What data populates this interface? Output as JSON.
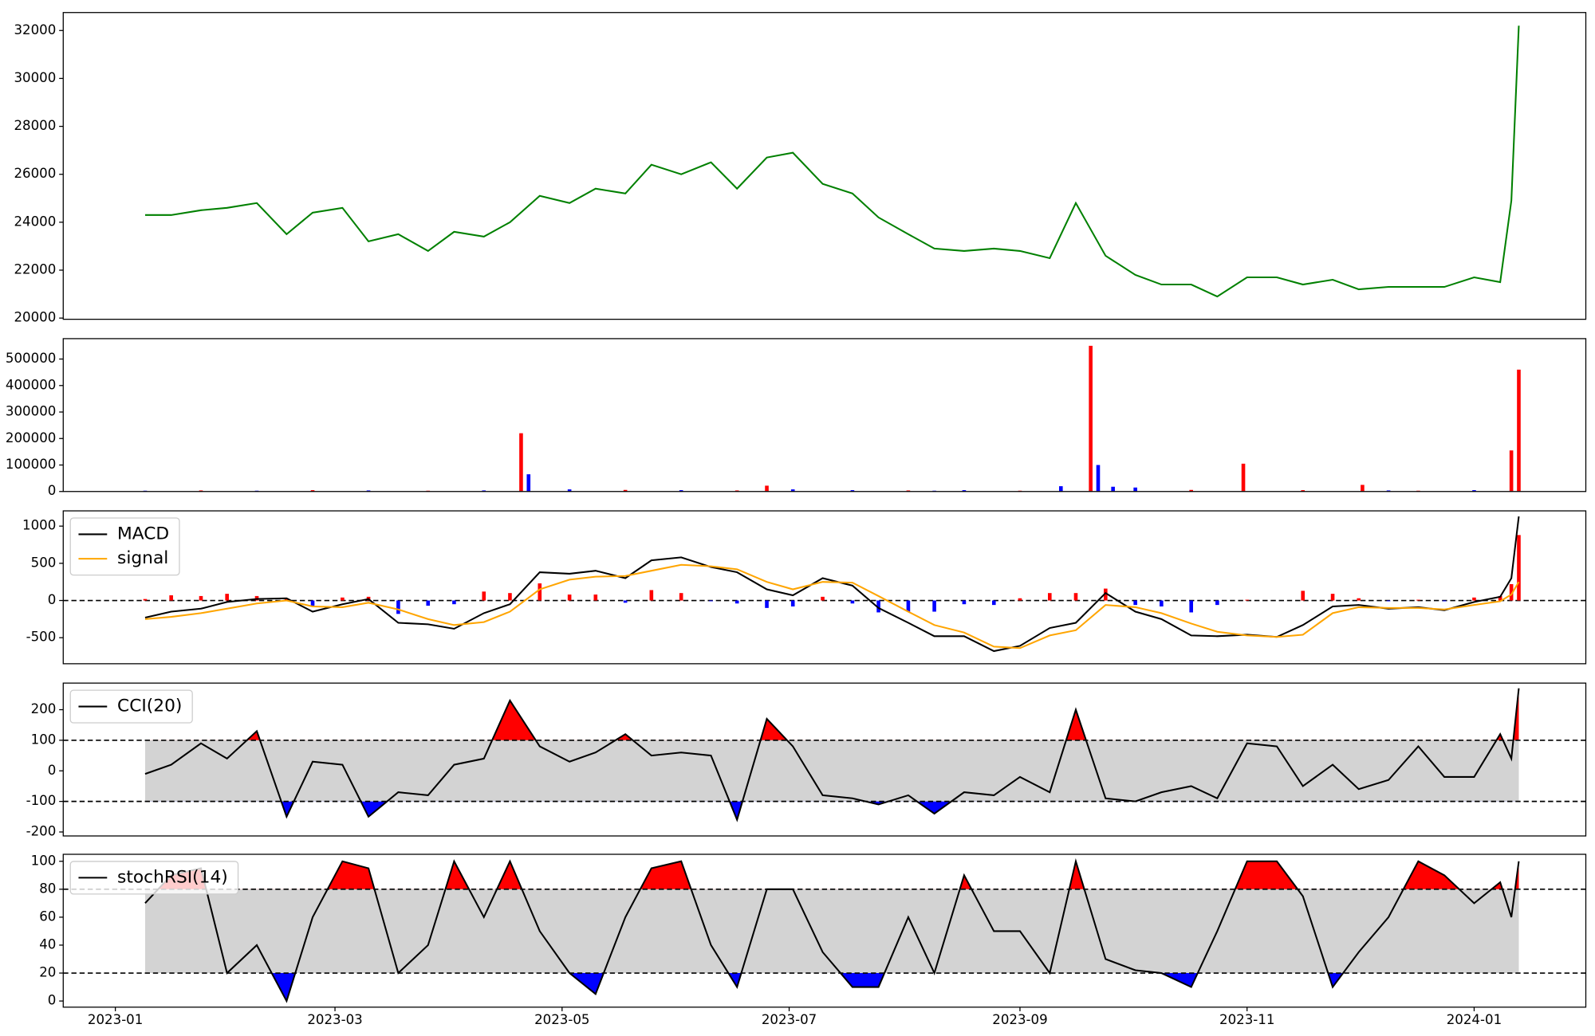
{
  "chart_data": [
    {
      "type": "line",
      "x": [
        8,
        15,
        23,
        30,
        38,
        46,
        53,
        61,
        68,
        76,
        84,
        91,
        99,
        106,
        114,
        122,
        129,
        137,
        144,
        152,
        160,
        167,
        175,
        182,
        190,
        198,
        205,
        213,
        220,
        228,
        236,
        243,
        251,
        258,
        266,
        274,
        281,
        289,
        296,
        304,
        312,
        319,
        327,
        334,
        342,
        350,
        357,
        365,
        372,
        375,
        377
      ],
      "series": [
        {
          "color": "green",
          "values": [
            24300,
            24300,
            24500,
            24600,
            24800,
            23500,
            24400,
            24600,
            23200,
            23500,
            22800,
            23600,
            23400,
            24000,
            25100,
            24800,
            25400,
            25200,
            26400,
            26000,
            26500,
            25400,
            26700,
            26900,
            25600,
            25200,
            24200,
            23500,
            22900,
            22800,
            22900,
            22800,
            22500,
            24800,
            22600,
            21800,
            21400,
            21400,
            20900,
            21700,
            21700,
            21400,
            21600,
            21200,
            21300,
            21300,
            21300,
            21700,
            21500,
            24900,
            32200
          ]
        }
      ],
      "xlim": [
        -14,
        395
      ],
      "ylim": [
        19950,
        32750
      ],
      "yticks": [
        20000,
        22000,
        24000,
        26000,
        28000,
        30000,
        32000
      ]
    },
    {
      "type": "bar",
      "x": [
        8,
        23,
        38,
        53,
        68,
        84,
        99,
        109,
        111,
        122,
        137,
        152,
        167,
        175,
        182,
        198,
        213,
        220,
        228,
        243,
        254,
        262,
        264,
        268,
        274,
        289,
        303,
        319,
        335,
        342,
        350,
        365,
        375,
        377
      ],
      "values": [
        3000,
        4000,
        3000,
        5000,
        4000,
        3000,
        4000,
        220000,
        65000,
        8000,
        6000,
        5000,
        4000,
        22000,
        8000,
        5000,
        4000,
        3000,
        5000,
        3000,
        20000,
        550000,
        100000,
        18000,
        15000,
        6000,
        105000,
        5000,
        25000,
        4000,
        3000,
        5000,
        155000,
        460000
      ],
      "colors": [
        "blue",
        "red",
        "blue",
        "red",
        "blue",
        "red",
        "blue",
        "red",
        "blue",
        "blue",
        "red",
        "blue",
        "red",
        "red",
        "blue",
        "blue",
        "red",
        "blue",
        "blue",
        "red",
        "blue",
        "red",
        "blue",
        "blue",
        "blue",
        "red",
        "red",
        "red",
        "red",
        "blue",
        "red",
        "blue",
        "red",
        "red"
      ],
      "xlim": [
        -14,
        395
      ],
      "ylim": [
        0,
        577000
      ],
      "yticks": [
        0,
        100000,
        200000,
        300000,
        400000,
        500000
      ]
    },
    {
      "type": "line",
      "x": [
        8,
        15,
        23,
        30,
        38,
        46,
        53,
        61,
        68,
        76,
        84,
        91,
        99,
        106,
        114,
        122,
        129,
        137,
        144,
        152,
        160,
        167,
        175,
        182,
        190,
        198,
        205,
        213,
        220,
        228,
        236,
        243,
        251,
        258,
        266,
        274,
        281,
        289,
        296,
        304,
        312,
        319,
        327,
        334,
        342,
        350,
        357,
        365,
        372,
        375,
        377
      ],
      "series": [
        {
          "name": "MACD",
          "color": "black",
          "values": [
            -230,
            -150,
            -110,
            -20,
            20,
            30,
            -150,
            -50,
            20,
            -300,
            -320,
            -380,
            -170,
            -50,
            380,
            360,
            400,
            300,
            540,
            580,
            450,
            380,
            150,
            70,
            300,
            200,
            -100,
            -300,
            -480,
            -480,
            -680,
            -610,
            -370,
            -300,
            100,
            -150,
            -250,
            -470,
            -480,
            -460,
            -490,
            -330,
            -80,
            -60,
            -110,
            -90,
            -130,
            -20,
            50,
            300,
            1130
          ]
        },
        {
          "name": "signal",
          "color": "orange",
          "values": [
            -250,
            -220,
            -170,
            -110,
            -40,
            0,
            -80,
            -90,
            -30,
            -120,
            -250,
            -330,
            -290,
            -150,
            150,
            280,
            320,
            330,
            400,
            480,
            460,
            420,
            250,
            150,
            250,
            240,
            60,
            -150,
            -330,
            -430,
            -620,
            -640,
            -470,
            -400,
            -60,
            -90,
            -170,
            -310,
            -420,
            -470,
            -490,
            -460,
            -170,
            -90,
            -100,
            -100,
            -120,
            -60,
            -10,
            80,
            250
          ]
        }
      ],
      "histogram": {
        "values": [
          20,
          70,
          60,
          90,
          60,
          30,
          -70,
          40,
          50,
          -180,
          -70,
          -50,
          120,
          100,
          230,
          80,
          80,
          -30,
          140,
          100,
          -10,
          -40,
          -100,
          -80,
          50,
          -40,
          -160,
          -150,
          -150,
          -50,
          -60,
          30,
          100,
          100,
          160,
          -60,
          -80,
          -160,
          -60,
          10,
          0,
          130,
          90,
          30,
          -10,
          10,
          -10,
          40,
          60,
          220,
          880
        ],
        "pos_color": "red",
        "neg_color": "blue"
      },
      "hlines": [
        0
      ],
      "legend": "upper left",
      "xlim": [
        -14,
        395
      ],
      "ylim": [
        -850,
        1205
      ],
      "yticks": [
        -500,
        0,
        500,
        1000
      ]
    },
    {
      "type": "line",
      "x": [
        8,
        15,
        23,
        30,
        38,
        46,
        53,
        61,
        68,
        76,
        84,
        91,
        99,
        106,
        114,
        122,
        129,
        137,
        144,
        152,
        160,
        167,
        175,
        182,
        190,
        198,
        205,
        213,
        220,
        228,
        236,
        243,
        251,
        258,
        266,
        274,
        281,
        289,
        296,
        304,
        312,
        319,
        327,
        334,
        342,
        350,
        357,
        365,
        372,
        375,
        377
      ],
      "series": [
        {
          "name": "CCI(20)",
          "color": "black",
          "values": [
            -10,
            20,
            90,
            40,
            130,
            -150,
            30,
            20,
            -150,
            -70,
            -80,
            20,
            40,
            230,
            80,
            30,
            60,
            120,
            50,
            60,
            50,
            -160,
            170,
            80,
            -80,
            -90,
            -110,
            -80,
            -140,
            -70,
            -80,
            -20,
            -70,
            200,
            -90,
            -100,
            -70,
            -50,
            -90,
            90,
            80,
            -50,
            20,
            -60,
            -30,
            80,
            -20,
            -20,
            120,
            40,
            270
          ]
        }
      ],
      "thresholds": [
        -100,
        100
      ],
      "band_color": "lightgray",
      "above_color": "red",
      "below_color": "blue",
      "legend": "upper left",
      "xlim": [
        -14,
        395
      ],
      "ylim": [
        -213,
        287
      ],
      "yticks": [
        -200,
        -100,
        0,
        100,
        200
      ]
    },
    {
      "type": "line",
      "x": [
        8,
        15,
        23,
        30,
        38,
        46,
        53,
        61,
        68,
        76,
        84,
        91,
        99,
        106,
        114,
        122,
        129,
        137,
        144,
        152,
        160,
        167,
        175,
        182,
        190,
        198,
        205,
        213,
        220,
        228,
        236,
        243,
        251,
        258,
        266,
        274,
        281,
        289,
        296,
        304,
        312,
        319,
        327,
        334,
        342,
        350,
        357,
        365,
        372,
        375,
        377
      ],
      "series": [
        {
          "name": "stochRSI(14)",
          "color": "black",
          "values": [
            70,
            90,
            95,
            20,
            40,
            0,
            60,
            100,
            95,
            20,
            40,
            100,
            60,
            100,
            50,
            20,
            5,
            60,
            95,
            100,
            40,
            10,
            80,
            80,
            35,
            10,
            10,
            60,
            20,
            90,
            50,
            50,
            20,
            100,
            30,
            22,
            20,
            10,
            50,
            100,
            100,
            75,
            10,
            35,
            60,
            100,
            90,
            70,
            85,
            60,
            100
          ]
        }
      ],
      "thresholds": [
        20,
        80
      ],
      "band_color": "lightgray",
      "above_color": "red",
      "below_color": "blue",
      "legend": "upper left",
      "xlim": [
        -14,
        395
      ],
      "ylim": [
        -4.4,
        105
      ],
      "yticks": [
        0,
        20,
        40,
        60,
        80,
        100
      ],
      "xticks": [
        {
          "value": 0,
          "label": "2023-01"
        },
        {
          "value": 59,
          "label": "2023-03"
        },
        {
          "value": 120,
          "label": "2023-05"
        },
        {
          "value": 181,
          "label": "2023-07"
        },
        {
          "value": 243,
          "label": "2023-09"
        },
        {
          "value": 304,
          "label": "2023-11"
        },
        {
          "value": 365,
          "label": "2024-01"
        }
      ]
    }
  ]
}
